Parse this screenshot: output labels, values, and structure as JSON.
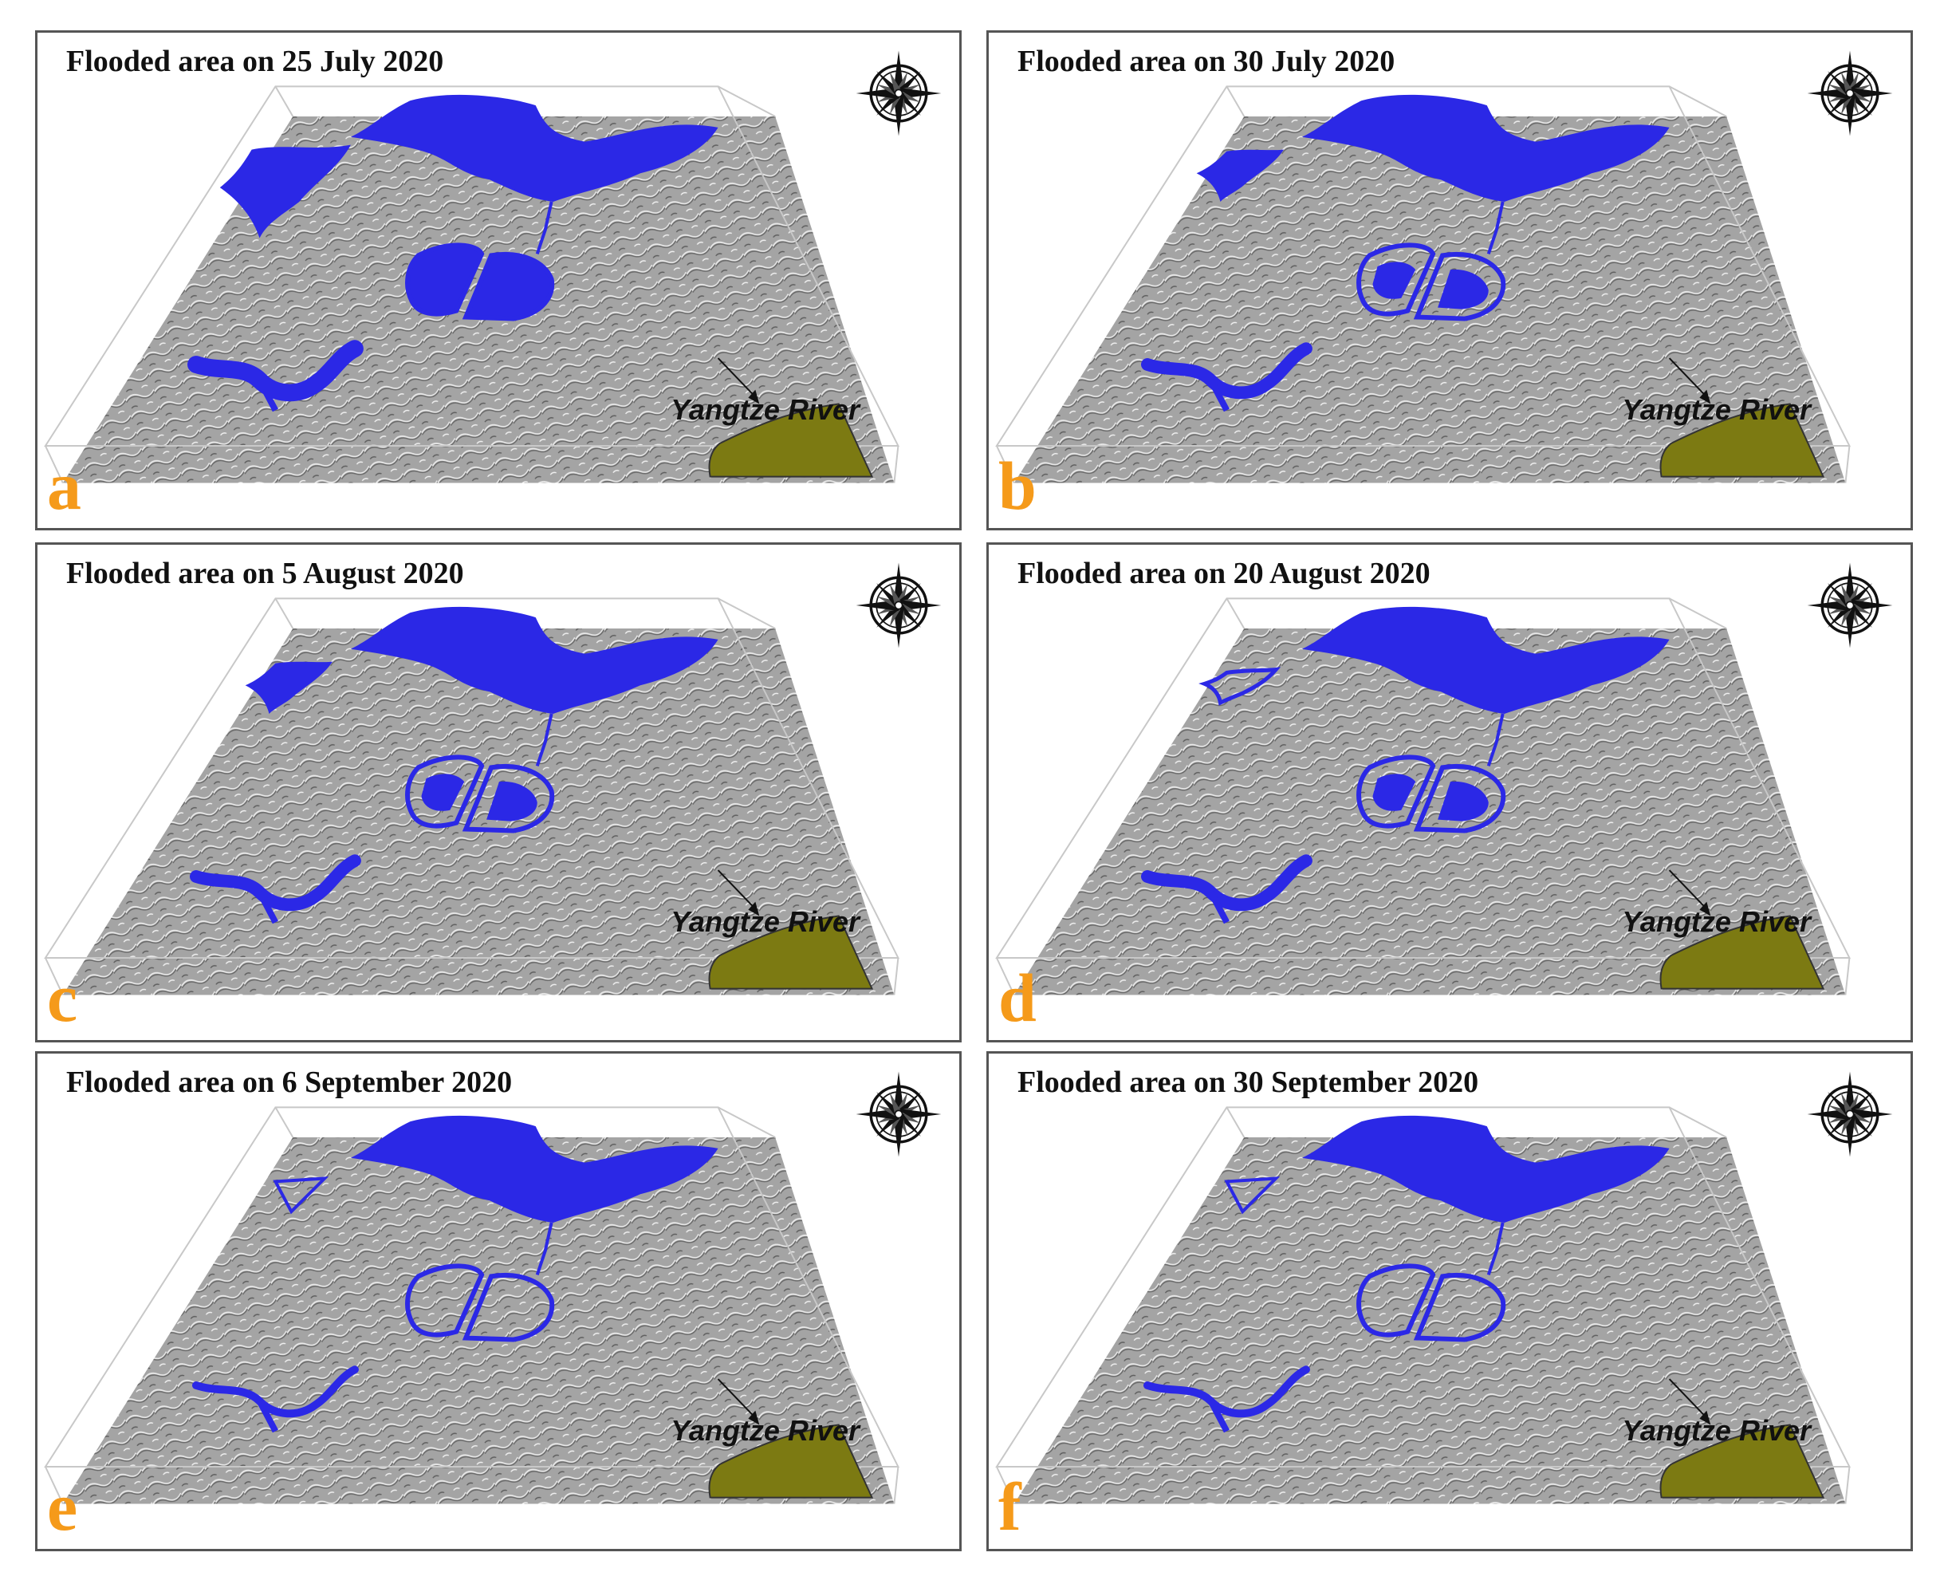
{
  "colors": {
    "water": "#2b28e6",
    "river": "#7c7a12",
    "letter": "#f59a1a",
    "terrain": "#a4a4a4"
  },
  "compass_icon": "compass-rose-icon",
  "panels": [
    {
      "letter": "a",
      "title": "Flooded area on 25 July 2020",
      "river_label": "Yangtze River",
      "flood_stage": "full"
    },
    {
      "letter": "b",
      "title": "Flooded area on 30 July 2020",
      "river_label": "Yangtze River",
      "flood_stage": "partial"
    },
    {
      "letter": "c",
      "title": "Flooded area on 5 August 2020",
      "river_label": "Yangtze River",
      "flood_stage": "partial"
    },
    {
      "letter": "d",
      "title": "Flooded area on 20 August 2020",
      "river_label": "Yangtze River",
      "flood_stage": "receding"
    },
    {
      "letter": "e",
      "title": "Flooded area on 6 September 2020",
      "river_label": "Yangtze River",
      "flood_stage": "ring"
    },
    {
      "letter": "f",
      "title": "Flooded area on 30 September 2020",
      "river_label": "Yangtze River",
      "flood_stage": "ring"
    }
  ]
}
